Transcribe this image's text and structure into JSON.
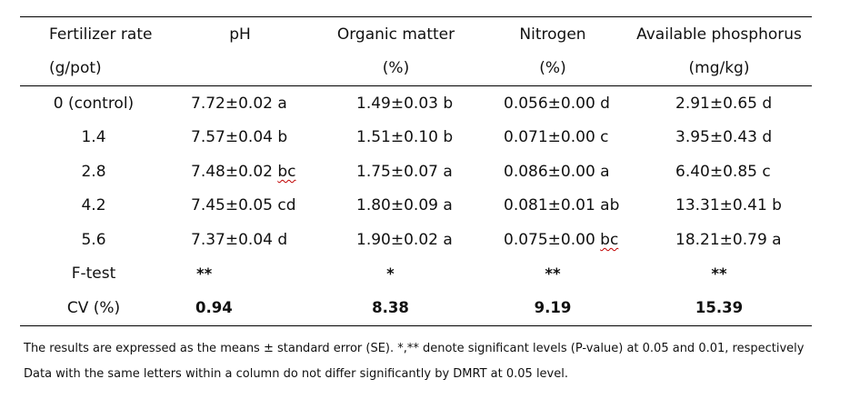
{
  "headers": {
    "row1": [
      "Fertilizer rate",
      "pH",
      "Organic matter",
      "Nitrogen",
      "Available phosphorus"
    ],
    "row2": [
      "(g/pot)",
      "",
      "(%)",
      "(%)",
      "(mg/kg)"
    ]
  },
  "rows": [
    {
      "rate": "0 (control)",
      "ph": "7.72±0.02 a",
      "om": "1.49±0.03 b",
      "n": "0.056±0.00 d",
      "p": "2.91±0.65 d"
    },
    {
      "rate": "1.4",
      "ph": "7.57±0.04 b",
      "om": "1.51±0.10 b",
      "n": "0.071±0.00 c",
      "p": "3.95±0.43 d"
    },
    {
      "rate": "2.8",
      "ph_value": "7.48±0.02",
      "ph_letter": "bc",
      "om": "1.75±0.07 a",
      "n": "0.086±0.00 a",
      "p": "6.40±0.85 c"
    },
    {
      "rate": "4.2",
      "ph": "7.45±0.05 cd",
      "om": "1.80±0.09 a",
      "n": "0.081±0.01 ab",
      "p": "13.31±0.41 b"
    },
    {
      "rate": "5.6",
      "ph": "7.37±0.04 d",
      "om": "1.90±0.02 a",
      "n_value": "0.075±0.00",
      "n_letter": "bc",
      "p": "18.21±0.79 a"
    }
  ],
  "ftest": {
    "label": "F-test",
    "ph": "**",
    "om": "*",
    "n": "**",
    "p": "**"
  },
  "cv": {
    "label": "CV (%)",
    "ph": "0.94",
    "om": "8.38",
    "n": "9.19",
    "p": "15.39"
  },
  "footnotes": [
    "The results are expressed as the means ± standard error (SE). *,** denote significant levels (P-value) at 0.05 and 0.01, respectively",
    "Data with the same letters within a column do not differ significantly by DMRT at 0.05 level."
  ]
}
